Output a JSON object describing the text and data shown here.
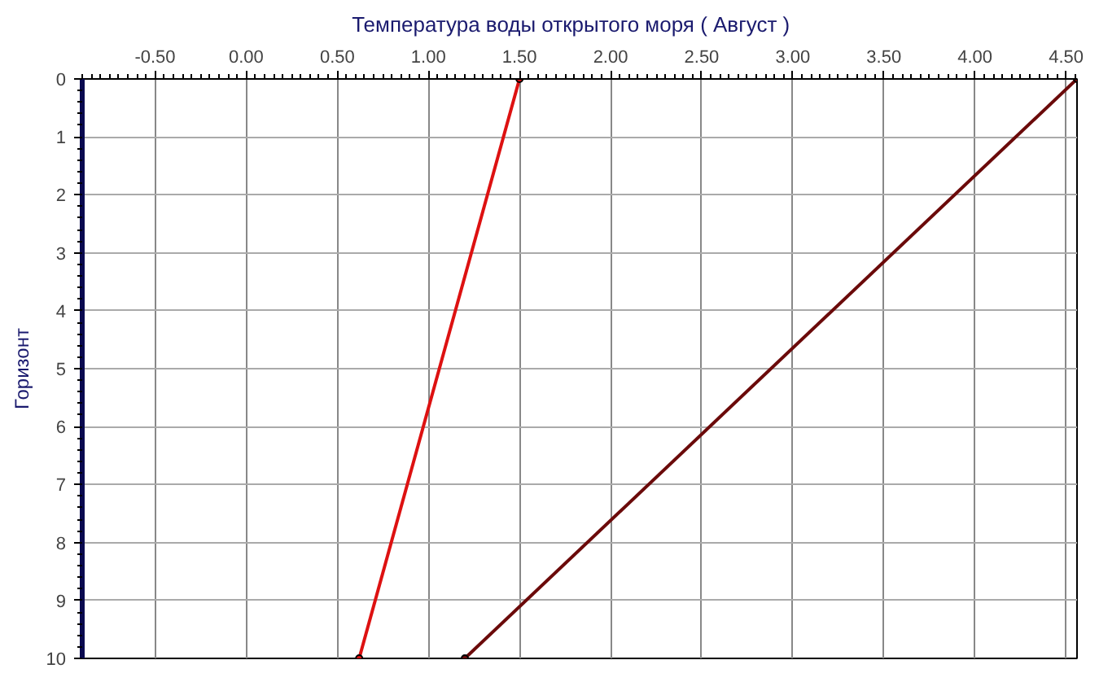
{
  "chart_data": {
    "type": "line",
    "title": "Температура воды открытого моря    ( Август )",
    "ylabel": "Горизонт",
    "series": [
      {
        "color": "#dd1111",
        "x": [
          1.5,
          0.62
        ],
        "values": [
          0,
          10
        ]
      },
      {
        "color": "#6b0a0a",
        "x": [
          4.56,
          1.2
        ],
        "values": [
          0,
          10
        ]
      }
    ],
    "xlim": [
      -0.9,
      4.56
    ],
    "xticks": [
      {
        "value": -0.5,
        "label": "-0.50"
      },
      {
        "value": 0,
        "label": "0.00"
      },
      {
        "value": 0.5,
        "label": "0.50"
      },
      {
        "value": 1,
        "label": "1.00"
      },
      {
        "value": 1.5,
        "label": "1.50"
      },
      {
        "value": 2,
        "label": "2.00"
      },
      {
        "value": 2.5,
        "label": "2.50"
      },
      {
        "value": 3,
        "label": "3.00"
      },
      {
        "value": 3.5,
        "label": "3.50"
      },
      {
        "value": 4,
        "label": "4.00"
      },
      {
        "value": 4.5,
        "label": "4.50"
      }
    ],
    "ylim": [
      10,
      0
    ],
    "yticks": [
      0,
      1,
      2,
      3,
      4,
      5,
      6,
      7,
      8,
      9,
      10
    ],
    "grid": true,
    "marker": "circle",
    "line_style": "solid"
  }
}
